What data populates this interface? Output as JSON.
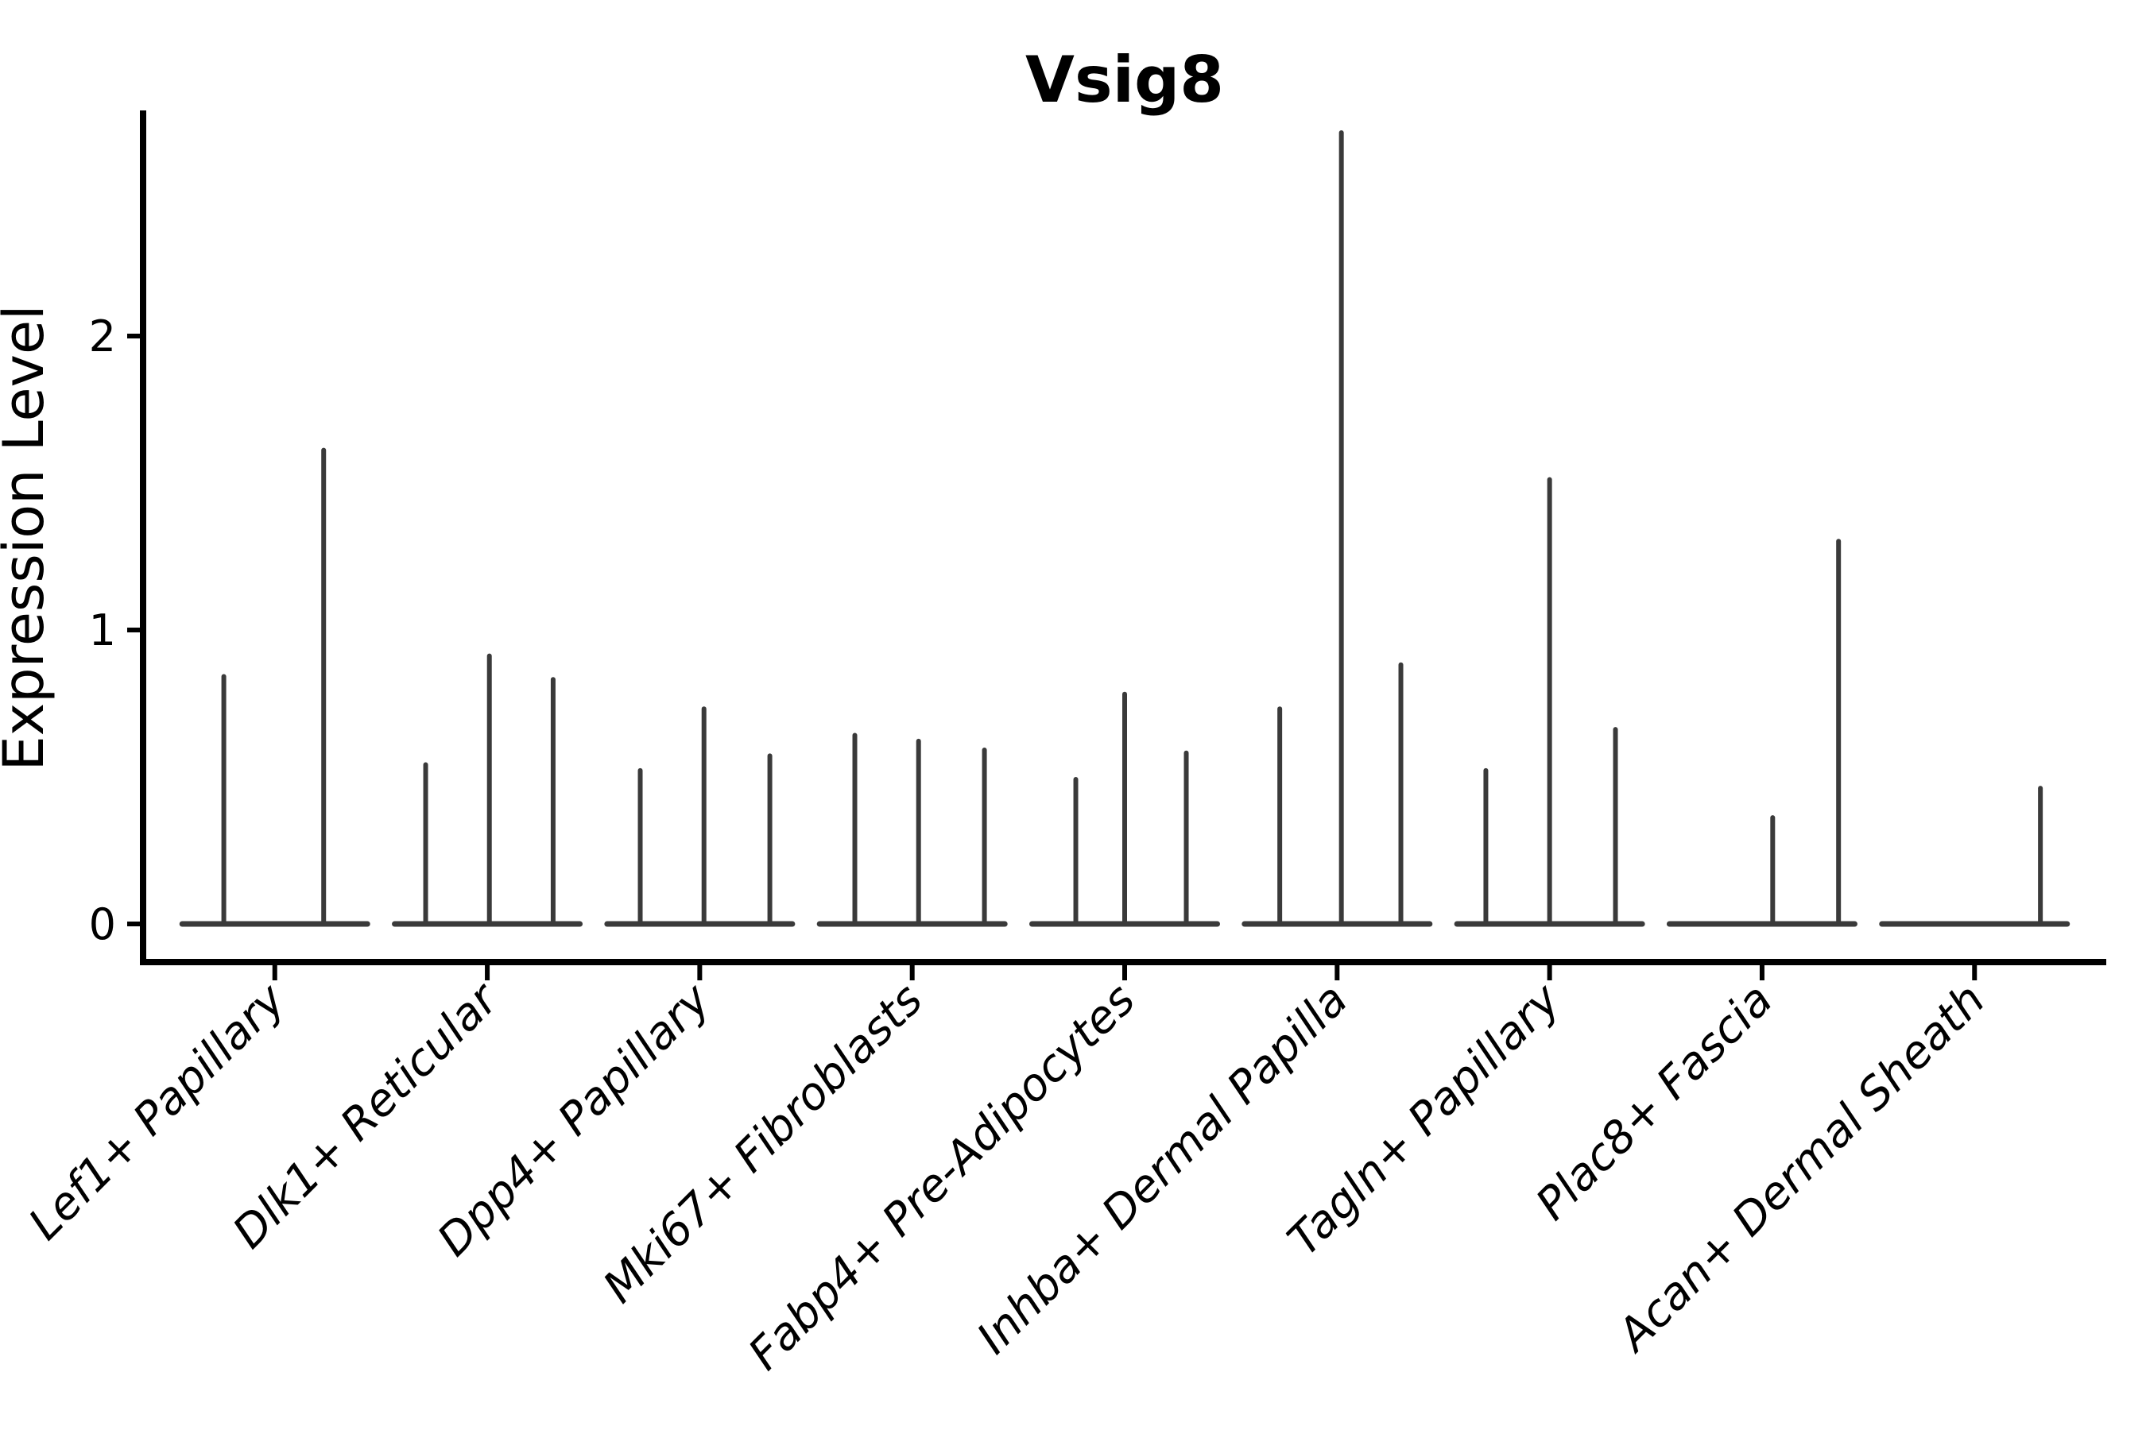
{
  "figure": {
    "title": "Vsig8",
    "y_axis_label": "Expression Level"
  },
  "chart_data": {
    "type": "violin",
    "title": "Vsig8",
    "xlabel": "",
    "ylabel": "Expression Level",
    "ylim": [
      -0.13,
      2.77
    ],
    "yticks": [
      0,
      1,
      2
    ],
    "grid": false,
    "legend": null,
    "description": "Collapsed violin plot (most cells at 0) with thin density spikes at non-zero expression values",
    "categories": [
      "Lef1+ Papillary",
      "Dlk1+ Reticular",
      "Dpp4+ Papillary",
      "Mki67+ Fibroblasts",
      "Fabp4+ Pre-Adipocytes",
      "Inhba+ Dermal Papilla",
      "Tagln+ Papillary",
      "Plac8+ Fascia",
      "Acan+ Dermal Sheath"
    ],
    "series": [
      {
        "category": "Lef1+ Papillary",
        "baseline": 0,
        "spikes": [
          {
            "offset": -0.24,
            "value": 0.85
          },
          {
            "offset": 0.23,
            "value": 1.62
          }
        ]
      },
      {
        "category": "Dlk1+ Reticular",
        "baseline": 0,
        "spikes": [
          {
            "offset": -0.29,
            "value": 0.55
          },
          {
            "offset": 0.01,
            "value": 0.92
          },
          {
            "offset": 0.31,
            "value": 0.84
          }
        ]
      },
      {
        "category": "Dpp4+ Papillary",
        "baseline": 0,
        "spikes": [
          {
            "offset": -0.28,
            "value": 0.53
          },
          {
            "offset": 0.02,
            "value": 0.74
          },
          {
            "offset": 0.33,
            "value": 0.58
          }
        ]
      },
      {
        "category": "Mki67+ Fibroblasts",
        "baseline": 0,
        "spikes": [
          {
            "offset": -0.27,
            "value": 0.65
          },
          {
            "offset": 0.03,
            "value": 0.63
          },
          {
            "offset": 0.34,
            "value": 0.6
          }
        ]
      },
      {
        "category": "Fabp4+ Pre-Adipocytes",
        "baseline": 0,
        "spikes": [
          {
            "offset": -0.23,
            "value": 0.5
          },
          {
            "offset": 0.0,
            "value": 0.79
          },
          {
            "offset": 0.29,
            "value": 0.59
          }
        ]
      },
      {
        "category": "Inhba+ Dermal Papilla",
        "baseline": 0,
        "spikes": [
          {
            "offset": -0.27,
            "value": 0.74
          },
          {
            "offset": 0.02,
            "value": 2.7
          },
          {
            "offset": 0.3,
            "value": 0.89
          }
        ]
      },
      {
        "category": "Tagln+ Papillary",
        "baseline": 0,
        "spikes": [
          {
            "offset": -0.3,
            "value": 0.53
          },
          {
            "offset": 0.0,
            "value": 1.52
          },
          {
            "offset": 0.31,
            "value": 0.67
          }
        ]
      },
      {
        "category": "Plac8+ Fascia",
        "baseline": 0,
        "spikes": [
          {
            "offset": 0.05,
            "value": 0.37
          },
          {
            "offset": 0.36,
            "value": 1.31
          }
        ]
      },
      {
        "category": "Acan+ Dermal Sheath",
        "baseline": 0,
        "spikes": [
          {
            "offset": 0.31,
            "value": 0.47
          }
        ]
      }
    ],
    "colors": {
      "violin": "#3a3a3a",
      "axis": "#000000",
      "text": "#000000",
      "background": "#ffffff"
    }
  }
}
